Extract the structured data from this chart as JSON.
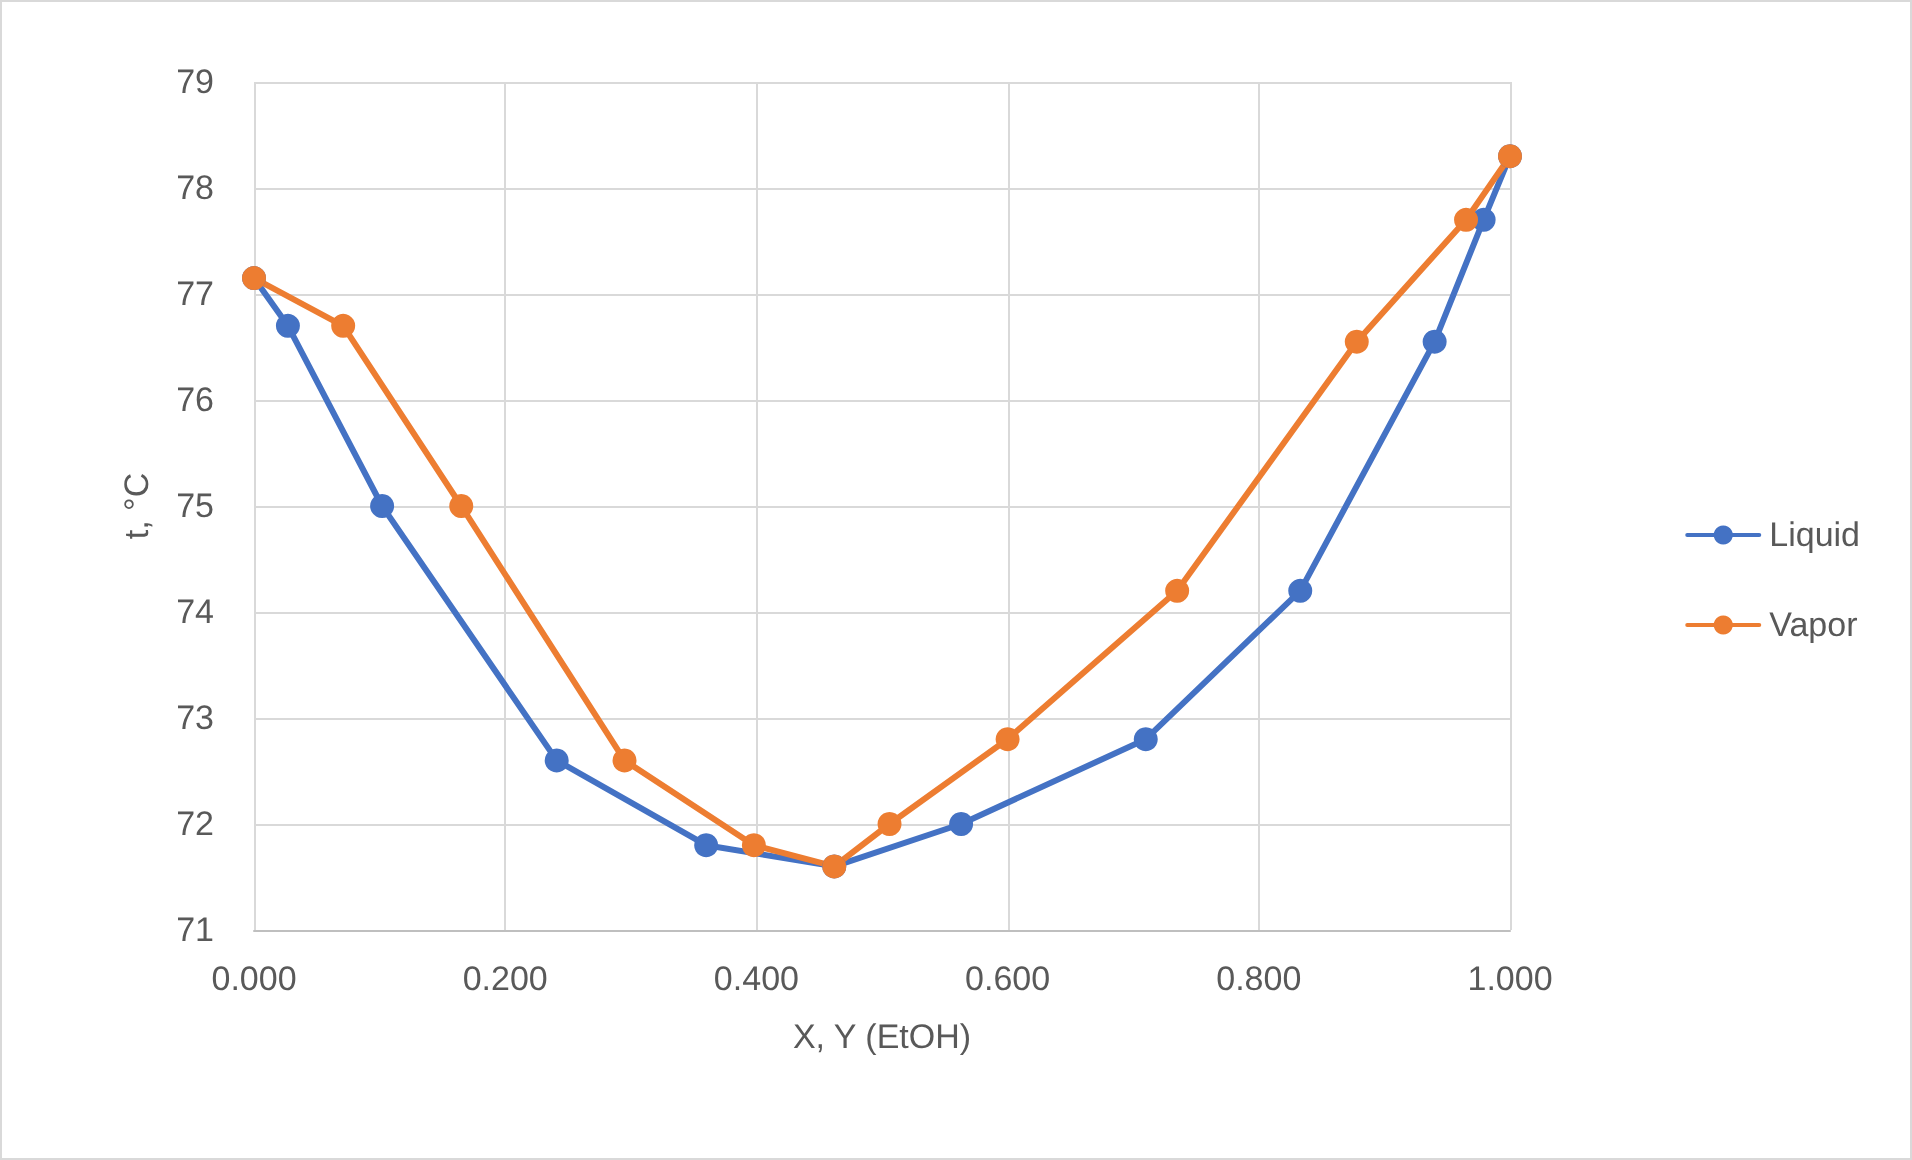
{
  "chart_data": {
    "type": "line",
    "xlabel": "X, Y (EtOH)",
    "ylabel": "t, °C",
    "xlim": [
      0,
      1
    ],
    "xticks": [
      {
        "value": 0,
        "label": "0.000"
      },
      {
        "value": 0.2,
        "label": "0.200"
      },
      {
        "value": 0.4,
        "label": "0.400"
      },
      {
        "value": 0.6,
        "label": "0.600"
      },
      {
        "value": 0.8,
        "label": "0.800"
      },
      {
        "value": 1,
        "label": "1.000"
      }
    ],
    "ylim": [
      71,
      79
    ],
    "yticks": [
      71,
      72,
      73,
      74,
      75,
      76,
      77,
      78,
      79
    ],
    "grid": true,
    "legend": "right",
    "marker": "circle",
    "line_style": "solid",
    "series": [
      {
        "name": "Liquid",
        "color": "#4472c4",
        "x": [
          0,
          0.027,
          0.102,
          0.241,
          0.36,
          0.462,
          0.563,
          0.71,
          0.833,
          0.94,
          0.979,
          1
        ],
        "values": [
          77.15,
          76.7,
          75.0,
          72.6,
          71.8,
          71.6,
          72.0,
          72.8,
          74.2,
          76.55,
          77.7,
          78.3
        ]
      },
      {
        "name": "Vapor",
        "color": "#ed7d31",
        "x": [
          0,
          0.071,
          0.165,
          0.295,
          0.398,
          0.462,
          0.506,
          0.6,
          0.735,
          0.878,
          0.965,
          1
        ],
        "values": [
          77.15,
          76.7,
          75.0,
          72.6,
          71.8,
          71.6,
          72.0,
          72.8,
          74.2,
          76.55,
          77.7,
          78.3
        ]
      }
    ]
  }
}
